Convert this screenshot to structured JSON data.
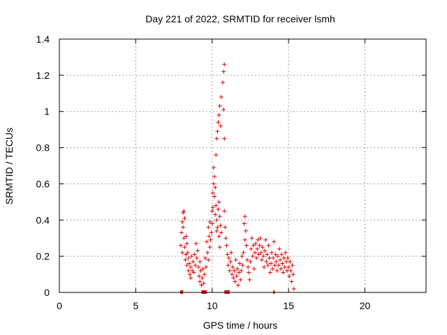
{
  "chart_data": {
    "type": "scatter",
    "title": "Day 221 of 2022, SRMTID for receiver lsmh",
    "xlabel": "GPS time / hours",
    "ylabel": "SRMTID / TECUs",
    "xlim": [
      0,
      24
    ],
    "ylim": [
      0,
      1.4
    ],
    "x_ticks": [
      0,
      5,
      10,
      15,
      20
    ],
    "x_tick_labels": [
      "0",
      "5",
      "10",
      "15",
      "20"
    ],
    "y_ticks": [
      0,
      0.2,
      0.4,
      0.6,
      0.8,
      1,
      1.2,
      1.4
    ],
    "y_tick_labels": [
      "0",
      "0.2",
      "0.4",
      "0.6",
      "0.8",
      "1",
      "1.2",
      "1.4"
    ],
    "grid": true,
    "marker": "+",
    "colors": {
      "points": "#dd0000",
      "grid": "#a0a0a0",
      "axes": "#000000"
    },
    "series": [
      {
        "name": "SRMTID",
        "points": [
          [
            7.95,
            0.26
          ],
          [
            8.0,
            0.33
          ],
          [
            8.05,
            0.39
          ],
          [
            8.05,
            0.22
          ],
          [
            8.1,
            0.44
          ],
          [
            8.1,
            0.36
          ],
          [
            8.15,
            0.45
          ],
          [
            8.15,
            0.3
          ],
          [
            8.2,
            0.41
          ],
          [
            8.2,
            0.25
          ],
          [
            8.25,
            0.18
          ],
          [
            8.3,
            0.31
          ],
          [
            8.3,
            0.21
          ],
          [
            8.35,
            0.27
          ],
          [
            8.35,
            0.15
          ],
          [
            8.4,
            0.22
          ],
          [
            8.45,
            0.19
          ],
          [
            8.45,
            0.12
          ],
          [
            8.5,
            0.16
          ],
          [
            8.55,
            0.1
          ],
          [
            8.6,
            0.14
          ],
          [
            8.6,
            0.08
          ],
          [
            8.65,
            0.2
          ],
          [
            8.7,
            0.12
          ],
          [
            8.75,
            0.17
          ],
          [
            8.8,
            0.11
          ],
          [
            8.85,
            0.21
          ],
          [
            8.9,
            0.15
          ],
          [
            8.95,
            0.27
          ],
          [
            9.0,
            0.19
          ],
          [
            9.05,
            0.23
          ],
          [
            9.1,
            0.14
          ],
          [
            9.15,
            0.09
          ],
          [
            9.2,
            0.06
          ],
          [
            9.2,
            0.17
          ],
          [
            9.25,
            0.12
          ],
          [
            9.3,
            0.04
          ],
          [
            9.35,
            0.08
          ],
          [
            9.4,
            0.13
          ],
          [
            9.45,
            0.05
          ],
          [
            9.5,
            0.1
          ],
          [
            9.55,
            0.19
          ],
          [
            9.6,
            0.14
          ],
          [
            9.65,
            0.28
          ],
          [
            9.7,
            0.22
          ],
          [
            9.75,
            0.36
          ],
          [
            9.75,
            0.18
          ],
          [
            9.8,
            0.31
          ],
          [
            9.85,
            0.39
          ],
          [
            9.85,
            0.25
          ],
          [
            9.9,
            0.29
          ],
          [
            9.95,
            0.33
          ],
          [
            10.0,
            0.45
          ],
          [
            10.0,
            0.38
          ],
          [
            10.05,
            0.55
          ],
          [
            10.05,
            0.47
          ],
          [
            10.1,
            0.6
          ],
          [
            10.1,
            0.69
          ],
          [
            10.15,
            0.64
          ],
          [
            10.15,
            0.53
          ],
          [
            10.2,
            0.58
          ],
          [
            10.2,
            0.43
          ],
          [
            10.25,
            0.48
          ],
          [
            10.3,
            0.4
          ],
          [
            10.3,
            0.34
          ],
          [
            10.35,
            0.36
          ],
          [
            10.4,
            0.46
          ],
          [
            10.45,
            0.5
          ],
          [
            10.45,
            0.31
          ],
          [
            10.5,
            0.42
          ],
          [
            10.5,
            0.25
          ],
          [
            10.55,
            0.37
          ],
          [
            10.6,
            0.33
          ],
          [
            10.25,
            0.76
          ],
          [
            10.3,
            0.85
          ],
          [
            10.35,
            0.89
          ],
          [
            10.4,
            0.94
          ],
          [
            10.45,
            0.98
          ],
          [
            10.5,
            1.03
          ],
          [
            10.55,
            0.92
          ],
          [
            10.6,
            1.08
          ],
          [
            10.7,
            1.16
          ],
          [
            10.75,
            1.22
          ],
          [
            10.8,
            1.26
          ],
          [
            10.75,
            1.01
          ],
          [
            10.8,
            0.85
          ],
          [
            10.8,
            0.45
          ],
          [
            10.85,
            0.36
          ],
          [
            10.9,
            0.3
          ],
          [
            10.95,
            0.26
          ],
          [
            11.0,
            0.21
          ],
          [
            11.05,
            0.15
          ],
          [
            11.1,
            0.19
          ],
          [
            11.15,
            0.12
          ],
          [
            11.2,
            0.17
          ],
          [
            11.25,
            0.22
          ],
          [
            11.3,
            0.1
          ],
          [
            11.35,
            0.14
          ],
          [
            11.4,
            0.08
          ],
          [
            11.45,
            0.12
          ],
          [
            11.5,
            0.06
          ],
          [
            11.55,
            0.18
          ],
          [
            11.6,
            0.09
          ],
          [
            11.65,
            0.13
          ],
          [
            11.7,
            0.04
          ],
          [
            11.75,
            0.11
          ],
          [
            11.8,
            0.16
          ],
          [
            11.85,
            0.07
          ],
          [
            11.9,
            0.12
          ],
          [
            11.95,
            0.2
          ],
          [
            12.0,
            0.15
          ],
          [
            12.05,
            0.22
          ],
          [
            12.1,
            0.38
          ],
          [
            12.15,
            0.42
          ],
          [
            12.15,
            0.29
          ],
          [
            12.2,
            0.34
          ],
          [
            12.25,
            0.26
          ],
          [
            12.3,
            0.18
          ],
          [
            12.35,
            0.14
          ],
          [
            12.4,
            0.11
          ],
          [
            12.45,
            0.07
          ],
          [
            12.5,
            0.17
          ],
          [
            12.55,
            0.24
          ],
          [
            12.6,
            0.3
          ],
          [
            12.65,
            0.2
          ],
          [
            12.7,
            0.26
          ],
          [
            12.75,
            0.13
          ],
          [
            12.8,
            0.22
          ],
          [
            12.85,
            0.27
          ],
          [
            12.9,
            0.19
          ],
          [
            12.95,
            0.24
          ],
          [
            13.0,
            0.29
          ],
          [
            13.05,
            0.21
          ],
          [
            13.1,
            0.26
          ],
          [
            13.15,
            0.3
          ],
          [
            13.2,
            0.22
          ],
          [
            13.25,
            0.18
          ],
          [
            13.3,
            0.25
          ],
          [
            13.35,
            0.2
          ],
          [
            13.4,
            0.14
          ],
          [
            13.45,
            0.23
          ],
          [
            13.5,
            0.29
          ],
          [
            13.55,
            0.17
          ],
          [
            13.6,
            0.21
          ],
          [
            13.65,
            0.15
          ],
          [
            13.7,
            0.26
          ],
          [
            13.75,
            0.19
          ],
          [
            13.8,
            0.11
          ],
          [
            13.85,
            0.16
          ],
          [
            13.9,
            0.22
          ],
          [
            13.95,
            0.13
          ],
          [
            14.0,
            0.19
          ],
          [
            14.05,
            0.28
          ],
          [
            14.1,
            0.15
          ],
          [
            14.15,
            0.21
          ],
          [
            14.2,
            0.17
          ],
          [
            14.25,
            0.12
          ],
          [
            14.3,
            0.2
          ],
          [
            14.35,
            0.15
          ],
          [
            14.4,
            0.24
          ],
          [
            14.45,
            0.18
          ],
          [
            14.5,
            0.13
          ],
          [
            14.55,
            0.21
          ],
          [
            14.6,
            0.16
          ],
          [
            14.65,
            0.11
          ],
          [
            14.7,
            0.19
          ],
          [
            14.75,
            0.14
          ],
          [
            14.8,
            0.22
          ],
          [
            14.85,
            0.17
          ],
          [
            14.9,
            0.12
          ],
          [
            14.95,
            0.19
          ],
          [
            15.0,
            0.14
          ],
          [
            15.05,
            0.09
          ],
          [
            15.1,
            0.17
          ],
          [
            15.15,
            0.12
          ],
          [
            15.2,
            0.06
          ],
          [
            15.25,
            0.15
          ],
          [
            15.3,
            0.1
          ],
          [
            15.35,
            0.02
          ]
        ]
      }
    ],
    "baseline_segments": [
      [
        7.9,
        8.1
      ],
      [
        9.3,
        9.65
      ],
      [
        10.8,
        11.15
      ],
      [
        14.0,
        14.1
      ]
    ]
  }
}
